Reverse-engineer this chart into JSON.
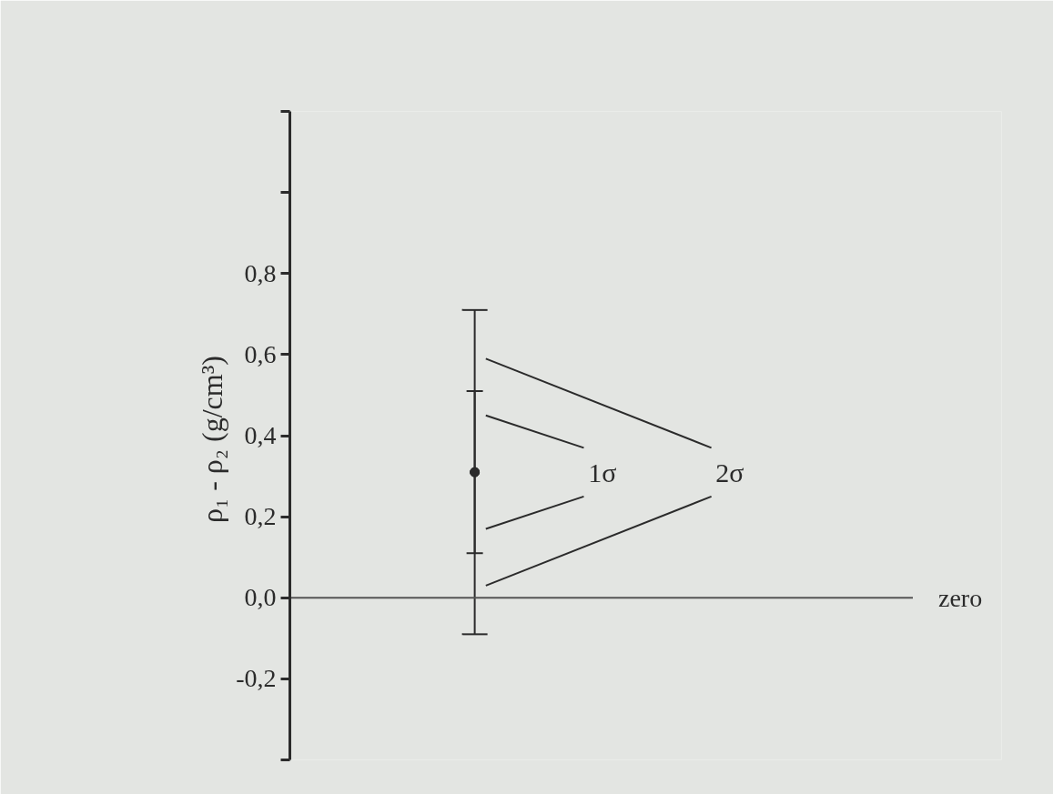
{
  "chart_data": {
    "type": "scatter",
    "ylabel": "ρ₁ - ρ₂  (g/cm³)",
    "categories": [
      null
    ],
    "marker": "circle",
    "series": [
      {
        "name": "2σ",
        "color": "#2b2b2b",
        "values": [
          0.31
        ],
        "errors": [
          0.4
        ]
      },
      {
        "name": "1σ",
        "color": "#2b2b2b",
        "values": [
          0.31
        ],
        "errors": [
          0.2
        ]
      }
    ],
    "ylim": [
      -0.4,
      1.2
    ],
    "yticks": [
      {
        "value": -0.4,
        "label": null
      },
      {
        "value": -0.2,
        "label": "-0,2"
      },
      {
        "value": 0.0,
        "label": "0,0"
      },
      {
        "value": 0.2,
        "label": "0,2"
      },
      {
        "value": 0.4,
        "label": "0,4"
      },
      {
        "value": 0.6,
        "label": "0,6"
      },
      {
        "value": 0.8,
        "label": "0,8"
      },
      {
        "value": 1.0,
        "label": null
      },
      {
        "value": 1.2,
        "label": null
      }
    ],
    "ref_lines": [
      {
        "axis": "y",
        "value": 0.0,
        "label": "zero",
        "color": "#555555"
      }
    ],
    "tick_labels": "y"
  }
}
